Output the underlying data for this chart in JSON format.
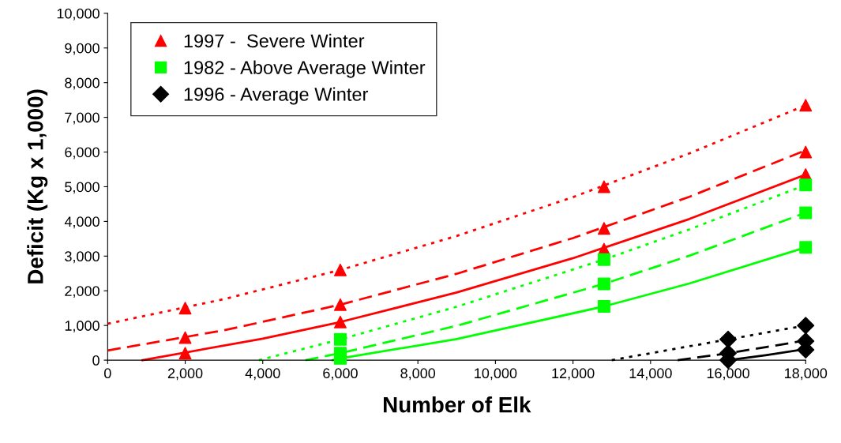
{
  "chart_data": {
    "type": "scatter",
    "xlabel": "Number of Elk",
    "ylabel": "Deficit (Kg x 1,000)",
    "xlim": [
      0,
      18000
    ],
    "ylim": [
      0,
      10000
    ],
    "xticks": [
      0,
      {
        "value": 2000,
        "label": "2,000"
      },
      {
        "value": 4000,
        "label": "4,000"
      },
      {
        "value": 6000,
        "label": "6,000"
      },
      {
        "value": 8000,
        "label": "8,000"
      },
      {
        "value": 10000,
        "label": "10,000"
      },
      {
        "value": 12000,
        "label": "12,000"
      },
      {
        "value": 14000,
        "label": "14,000"
      },
      {
        "value": 16000,
        "label": "16,000"
      },
      {
        "value": 18000,
        "label": "18,000"
      }
    ],
    "yticks": [
      0,
      {
        "value": 1000,
        "label": "1,000"
      },
      {
        "value": 2000,
        "label": "2,000"
      },
      {
        "value": 3000,
        "label": "3,000"
      },
      {
        "value": 4000,
        "label": "4,000"
      },
      {
        "value": 5000,
        "label": "5,000"
      },
      {
        "value": 6000,
        "label": "6,000"
      },
      {
        "value": 7000,
        "label": "7,000"
      },
      {
        "value": 8000,
        "label": "8,000"
      },
      {
        "value": 9000,
        "label": "9,000"
      },
      {
        "value": 10000,
        "label": "10,000"
      }
    ],
    "grid": false,
    "legend": "top left",
    "series": [
      {
        "type": "line",
        "color": "#ff0000",
        "line_style": "dotted",
        "marker": "none",
        "x": [
          0,
          3000,
          6000,
          9000,
          12000,
          15000,
          18000
        ],
        "values": [
          1050,
          1760,
          2600,
          3580,
          4700,
          5960,
          7350
        ]
      },
      {
        "type": "line",
        "color": "#ff0000",
        "line_style": "dashed",
        "marker": "none",
        "x": [
          0,
          3000,
          6000,
          9000,
          12000,
          15000,
          18000
        ],
        "values": [
          280,
          860,
          1600,
          2490,
          3520,
          4710,
          6050
        ]
      },
      {
        "type": "line",
        "color": "#ff0000",
        "line_style": "solid",
        "marker": "none",
        "x": [
          900,
          4000,
          6000,
          9000,
          12000,
          15000,
          18000
        ],
        "values": [
          0,
          620,
          1100,
          1950,
          2940,
          4070,
          5350
        ]
      },
      {
        "type": "line",
        "color": "#00ff00",
        "line_style": "dotted",
        "marker": "none",
        "x": [
          3900,
          6000,
          9000,
          12800,
          15000,
          18000
        ],
        "values": [
          0,
          600,
          1540,
          2900,
          3770,
          5050
        ]
      },
      {
        "type": "line",
        "color": "#00ff00",
        "line_style": "dashed",
        "marker": "none",
        "x": [
          5100,
          6000,
          9000,
          12800,
          15000,
          18000
        ],
        "values": [
          0,
          200,
          990,
          2200,
          3010,
          4250
        ]
      },
      {
        "type": "line",
        "color": "#00ff00",
        "line_style": "solid",
        "marker": "none",
        "x": [
          5800,
          6000,
          9000,
          12800,
          15000,
          18000
        ],
        "values": [
          0,
          50,
          610,
          1550,
          2210,
          3250
        ]
      },
      {
        "type": "line",
        "color": "#000000",
        "line_style": "dotted",
        "marker": "none",
        "x": [
          13000,
          14500,
          16000,
          17000,
          18000
        ],
        "values": [
          0,
          300,
          600,
          800,
          1000
        ]
      },
      {
        "type": "line",
        "color": "#000000",
        "line_style": "dashed",
        "marker": "none",
        "x": [
          14700,
          16000,
          17000,
          18000
        ],
        "values": [
          0,
          200,
          380,
          570
        ]
      },
      {
        "type": "line",
        "color": "#000000",
        "line_style": "solid",
        "marker": "none",
        "x": [
          16000,
          17000,
          18000
        ],
        "values": [
          0,
          150,
          320
        ]
      },
      {
        "name": "1997 -  Severe Winter",
        "color": "#ff0000",
        "marker": "triangle",
        "x": [
          2000,
          2000,
          2000,
          6000,
          6000,
          6000,
          12800,
          12800,
          12800,
          18000,
          18000,
          18000
        ],
        "values": [
          1500,
          650,
          200,
          2600,
          1600,
          1100,
          5000,
          3800,
          3200,
          7350,
          6000,
          5350
        ]
      },
      {
        "name": "1982 - Above Average Winter",
        "color": "#00ff00",
        "marker": "square",
        "x": [
          6000,
          6000,
          6000,
          12800,
          12800,
          12800,
          18000,
          18000,
          18000
        ],
        "values": [
          600,
          200,
          50,
          2900,
          2200,
          1550,
          5050,
          4250,
          3250
        ]
      },
      {
        "name": "1996 - Average Winter",
        "color": "#000000",
        "marker": "diamond",
        "x": [
          16000,
          16000,
          16000,
          18000,
          18000,
          18000
        ],
        "values": [
          600,
          200,
          0,
          1000,
          550,
          300
        ]
      }
    ]
  }
}
